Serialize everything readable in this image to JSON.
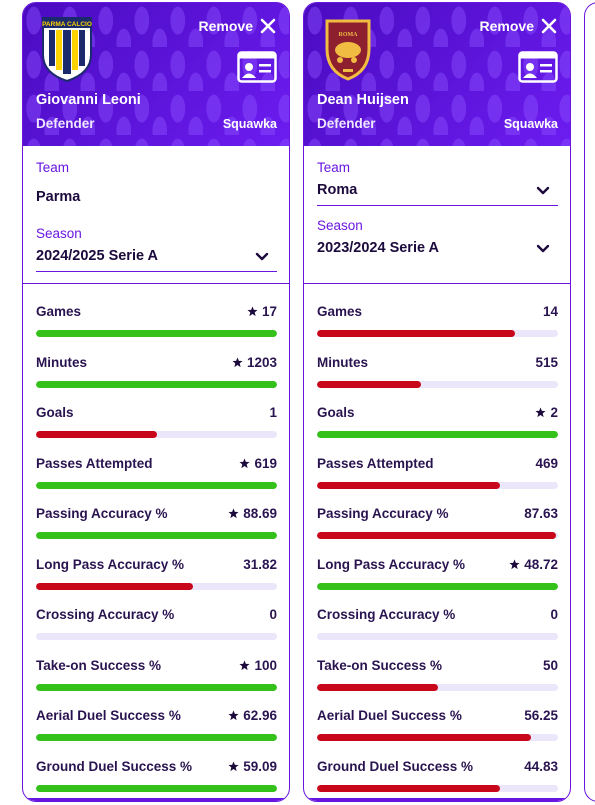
{
  "colors": {
    "purple": "#6a16e0",
    "green": "#34c21a",
    "red": "#c8081a",
    "track": "#ece6fb"
  },
  "players": [
    {
      "name": "Giovanni Leoni",
      "position": "Defender",
      "source": "Squawka",
      "remove_label": "Remove",
      "crest_icon": "parma-calcio-crest-icon",
      "crest_text": "PARMA CALCIO",
      "team_label": "Team",
      "team": "Parma",
      "season_label": "Season",
      "season": "2024/2025 Serie A",
      "stats": [
        {
          "label": "Games",
          "value": "17",
          "star": true,
          "fill": 1.0,
          "color": "green"
        },
        {
          "label": "Minutes",
          "value": "1203",
          "star": true,
          "fill": 1.0,
          "color": "green"
        },
        {
          "label": "Goals",
          "value": "1",
          "star": false,
          "fill": 0.5,
          "color": "red"
        },
        {
          "label": "Passes Attempted",
          "value": "619",
          "star": true,
          "fill": 1.0,
          "color": "green"
        },
        {
          "label": "Passing Accuracy %",
          "value": "88.69",
          "star": true,
          "fill": 1.0,
          "color": "green"
        },
        {
          "label": "Long Pass Accuracy %",
          "value": "31.82",
          "star": false,
          "fill": 0.65,
          "color": "red"
        },
        {
          "label": "Crossing Accuracy %",
          "value": "0",
          "star": false,
          "fill": 0.0,
          "color": "green"
        },
        {
          "label": "Take-on Success %",
          "value": "100",
          "star": true,
          "fill": 1.0,
          "color": "green"
        },
        {
          "label": "Aerial Duel Success %",
          "value": "62.96",
          "star": true,
          "fill": 1.0,
          "color": "green"
        },
        {
          "label": "Ground Duel Success %",
          "value": "59.09",
          "star": true,
          "fill": 1.0,
          "color": "green"
        }
      ]
    },
    {
      "name": "Dean Huijsen",
      "position": "Defender",
      "source": "Squawka",
      "remove_label": "Remove",
      "crest_icon": "as-roma-crest-icon",
      "crest_text": "ROMA",
      "team_label": "Team",
      "team": "Roma",
      "season_label": "Season",
      "season": "2023/2024 Serie A",
      "stats": [
        {
          "label": "Games",
          "value": "14",
          "star": false,
          "fill": 0.82,
          "color": "red"
        },
        {
          "label": "Minutes",
          "value": "515",
          "star": false,
          "fill": 0.43,
          "color": "red"
        },
        {
          "label": "Goals",
          "value": "2",
          "star": true,
          "fill": 1.0,
          "color": "green"
        },
        {
          "label": "Passes Attempted",
          "value": "469",
          "star": false,
          "fill": 0.76,
          "color": "red"
        },
        {
          "label": "Passing Accuracy %",
          "value": "87.63",
          "star": false,
          "fill": 0.99,
          "color": "red"
        },
        {
          "label": "Long Pass Accuracy %",
          "value": "48.72",
          "star": true,
          "fill": 1.0,
          "color": "green"
        },
        {
          "label": "Crossing Accuracy %",
          "value": "0",
          "star": false,
          "fill": 0.0,
          "color": "green"
        },
        {
          "label": "Take-on Success %",
          "value": "50",
          "star": false,
          "fill": 0.5,
          "color": "red"
        },
        {
          "label": "Aerial Duel Success %",
          "value": "56.25",
          "star": false,
          "fill": 0.89,
          "color": "red"
        },
        {
          "label": "Ground Duel Success %",
          "value": "44.83",
          "star": false,
          "fill": 0.76,
          "color": "red"
        }
      ]
    }
  ]
}
